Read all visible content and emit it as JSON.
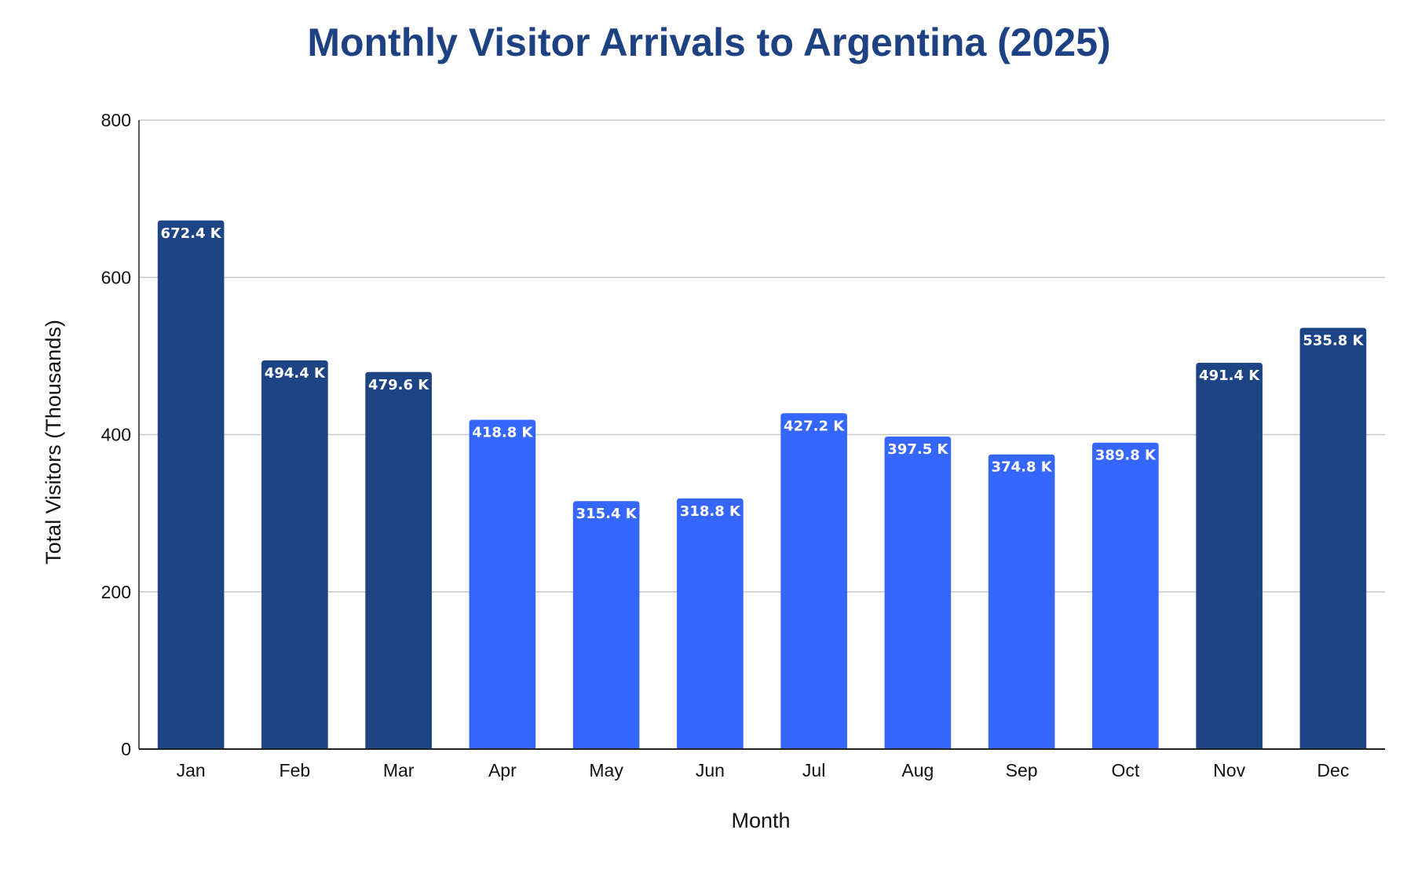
{
  "chart_data": {
    "type": "bar",
    "title": "Monthly Visitor Arrivals to Argentina (2025)",
    "xlabel": "Month",
    "ylabel": "Total Visitors (Thousands)",
    "categories": [
      "Jan",
      "Feb",
      "Mar",
      "Apr",
      "May",
      "Jun",
      "Jul",
      "Aug",
      "Sep",
      "Oct",
      "Nov",
      "Dec"
    ],
    "values": [
      672.4,
      494.4,
      479.6,
      418.8,
      315.4,
      318.8,
      427.2,
      397.5,
      374.8,
      389.8,
      491.4,
      535.8
    ],
    "data_labels": [
      "672.4 K",
      "494.4 K",
      "479.6 K",
      "418.8 K",
      "315.4 K",
      "318.8 K",
      "427.2 K",
      "397.5 K",
      "374.8 K",
      "389.8 K",
      "491.4 K",
      "535.8 K"
    ],
    "ylim": [
      0,
      800
    ],
    "yticks": [
      0,
      200,
      400,
      600,
      800
    ],
    "grid": true,
    "legend": "none",
    "colors": {
      "high_season": "#1d4586",
      "low_season": "#3566fe",
      "title": "#1d4182",
      "gridline": "#c8c8c8",
      "axis": "#222222"
    },
    "bar_color_keys": [
      "high_season",
      "high_season",
      "high_season",
      "low_season",
      "low_season",
      "low_season",
      "low_season",
      "low_season",
      "low_season",
      "low_season",
      "high_season",
      "high_season"
    ]
  }
}
